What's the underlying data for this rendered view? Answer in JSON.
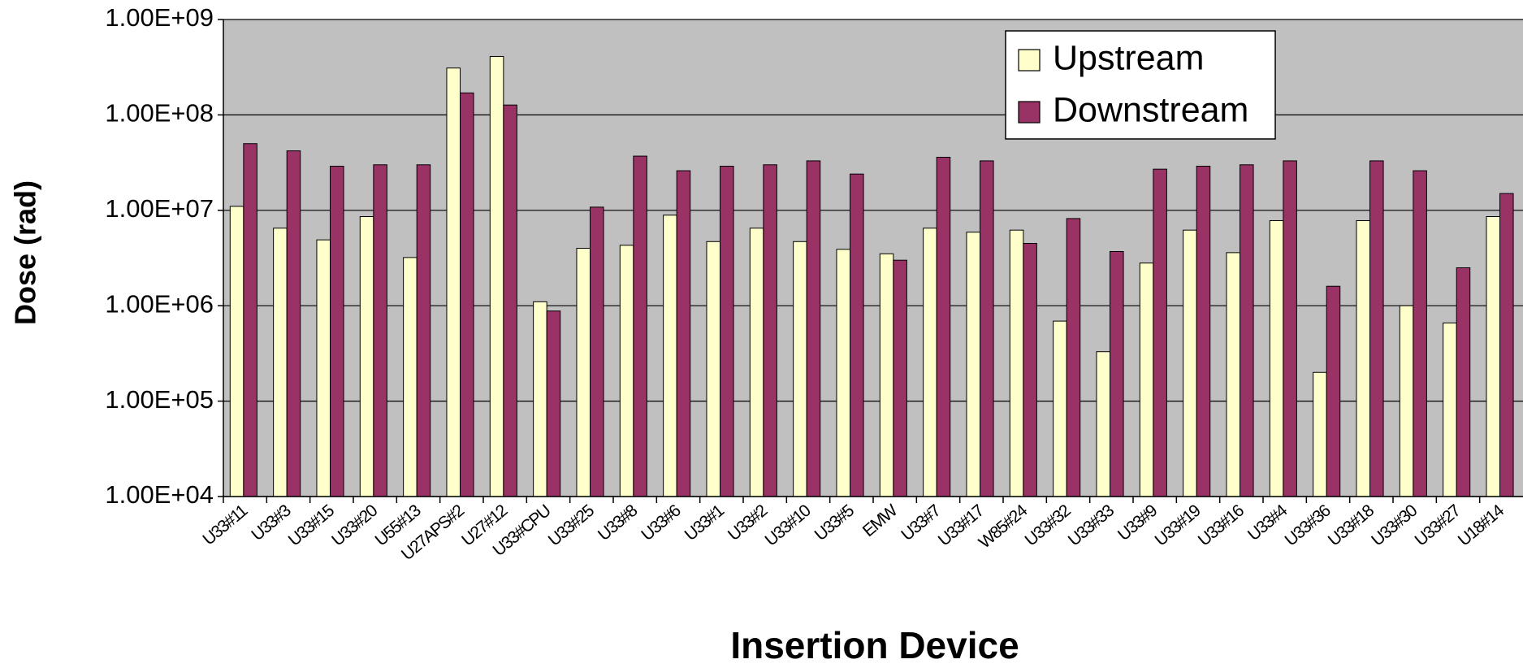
{
  "chart_data": {
    "type": "bar",
    "x_label": "Insertion Device",
    "y_label": "Dose (rad)",
    "log_scale": true,
    "grid": true,
    "legend_position": "upper right",
    "categories": [
      "U33#11",
      "U33#3",
      "U33#15",
      "U33#20",
      "U55#13",
      "U27APS#2",
      "U27#12",
      "U33#CPU",
      "U33#25",
      "U33#8",
      "U33#6",
      "U33#1",
      "U33#2",
      "U33#10",
      "U33#5",
      "EMW",
      "U33#7",
      "U33#17",
      "W85#24",
      "U33#32",
      "U33#33",
      "U33#9",
      "U33#19",
      "U33#16",
      "U33#4",
      "U33#36",
      "U33#18",
      "U33#30",
      "U33#27",
      "U18#14"
    ],
    "series": [
      {
        "name": "Upstream",
        "color": "#ffffcc",
        "values": [
          11000000,
          6500000,
          4900000,
          8600000,
          3200000,
          310000000,
          410000000,
          1100000,
          4000000,
          4300000,
          8900000,
          4700000,
          6500000,
          4700000,
          3900000,
          3500000,
          6500000,
          5900000,
          6200000,
          690000,
          330000,
          2800000,
          6200000,
          3600000,
          7800000,
          200000,
          7800000,
          1000000,
          660000,
          8600000
        ]
      },
      {
        "name": "Downstream",
        "color": "#993366",
        "values": [
          50000000,
          42000000,
          29000000,
          30000000,
          30000000,
          170000000,
          127000000,
          880000,
          10800000,
          37000000,
          26000000,
          29000000,
          30000000,
          33000000,
          24000000,
          3000000,
          36000000,
          33000000,
          4500000,
          8200000,
          3700000,
          27000000,
          29000000,
          30000000,
          33000000,
          1600000,
          33000000,
          26000000,
          2500000,
          15000000
        ]
      }
    ],
    "ylim": [
      10000,
      1000000000
    ],
    "yticks": [
      {
        "value": 10000,
        "label": "1.00E+04"
      },
      {
        "value": 100000,
        "label": "1.00E+05"
      },
      {
        "value": 1000000,
        "label": "1.00E+06"
      },
      {
        "value": 10000000,
        "label": "1.00E+07"
      },
      {
        "value": 100000000,
        "label": "1.00E+08"
      },
      {
        "value": 1000000000,
        "label": "1.00E+09"
      }
    ]
  }
}
